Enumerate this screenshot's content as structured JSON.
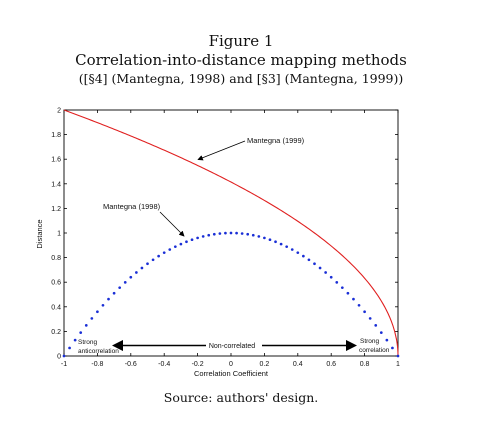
{
  "figure": {
    "number": "Figure 1",
    "title": "Correlation-into-distance mapping methods",
    "subtitle": "([§4] (Mantegna, 1998) and [§3] (Mantegna, 1999))",
    "source": "Source: authors' design."
  },
  "chart_data": {
    "type": "line",
    "xlabel": "Correlation Coefficient",
    "ylabel": "Distance",
    "xlim": [
      -1,
      1
    ],
    "ylim": [
      0,
      2
    ],
    "xticks": [
      "-1",
      "-0.8",
      "-0.6",
      "-0.4",
      "-0.2",
      "0",
      "0.2",
      "0.4",
      "0.6",
      "0.8",
      "1"
    ],
    "yticks": [
      "0",
      "0.2",
      "0.4",
      "0.6",
      "0.8",
      "1",
      "1.2",
      "1.4",
      "1.6",
      "1.8",
      "2"
    ],
    "grid": false,
    "series": [
      {
        "name": "Mantegna (1999)",
        "color": "#e02020",
        "style": "solid",
        "formula": "sqrt(2*(1-rho))",
        "x": [
          -1,
          -0.9,
          -0.8,
          -0.7,
          -0.6,
          -0.5,
          -0.4,
          -0.3,
          -0.2,
          -0.1,
          0,
          0.1,
          0.2,
          0.3,
          0.4,
          0.5,
          0.6,
          0.7,
          0.8,
          0.9,
          0.95,
          0.99,
          1
        ],
        "y": [
          2,
          1.949,
          1.897,
          1.844,
          1.789,
          1.732,
          1.673,
          1.612,
          1.549,
          1.483,
          1.414,
          1.342,
          1.265,
          1.183,
          1.095,
          1,
          0.894,
          0.775,
          0.632,
          0.447,
          0.316,
          0.141,
          0
        ]
      },
      {
        "name": "Mantegna (1998)",
        "color": "#1a2fd6",
        "style": "dotted",
        "formula": "1-rho^2",
        "x": [
          -1,
          -0.9,
          -0.8,
          -0.7,
          -0.6,
          -0.5,
          -0.4,
          -0.3,
          -0.2,
          -0.1,
          0,
          0.1,
          0.2,
          0.3,
          0.4,
          0.5,
          0.6,
          0.7,
          0.8,
          0.9,
          1
        ],
        "y": [
          0,
          0.19,
          0.36,
          0.51,
          0.64,
          0.75,
          0.84,
          0.91,
          0.96,
          0.99,
          1,
          0.99,
          0.96,
          0.91,
          0.84,
          0.75,
          0.64,
          0.51,
          0.36,
          0.19,
          0
        ]
      }
    ],
    "annotations": {
      "strong_anti_line1": "Strong",
      "strong_anti_line2": "anticorrelation",
      "non_correlated": "Non-correlated",
      "strong_corr_line1": "Strong",
      "strong_corr_line2": "correlation"
    }
  }
}
